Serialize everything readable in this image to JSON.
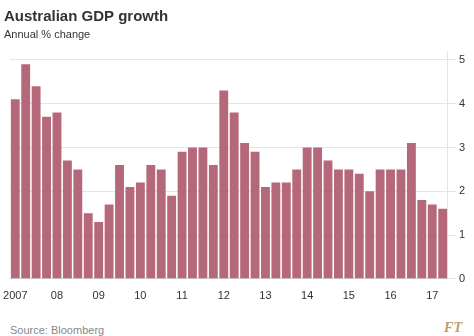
{
  "chart_data": {
    "type": "bar",
    "title": "Australian GDP growth",
    "subtitle": "Annual % change",
    "annotations": [
      "Source: Bloomberg",
      "FT"
    ],
    "categories": [
      "2007",
      null,
      null,
      null,
      "08",
      null,
      null,
      null,
      "09",
      null,
      null,
      null,
      "10",
      null,
      null,
      null,
      "11",
      null,
      null,
      null,
      "12",
      null,
      null,
      null,
      "13",
      null,
      null,
      null,
      "14",
      null,
      null,
      null,
      "15",
      null,
      null,
      null,
      "16",
      null,
      null,
      null,
      "17",
      null
    ],
    "values": [
      4.1,
      4.9,
      4.4,
      3.7,
      3.8,
      2.7,
      2.5,
      1.5,
      1.3,
      1.7,
      2.6,
      2.1,
      2.2,
      2.6,
      2.5,
      1.9,
      2.9,
      3.0,
      3.0,
      2.6,
      4.3,
      3.8,
      3.1,
      2.9,
      2.1,
      2.2,
      2.2,
      2.5,
      3.0,
      3.0,
      2.7,
      2.5,
      2.5,
      2.4,
      2.0,
      2.5,
      2.5,
      2.5,
      3.1,
      1.8,
      1.7,
      1.6
    ],
    "color": "#b5687a",
    "ylim": [
      0,
      5.2
    ],
    "yticks": [
      0,
      1,
      2,
      3,
      4,
      5
    ],
    "grid": true
  }
}
